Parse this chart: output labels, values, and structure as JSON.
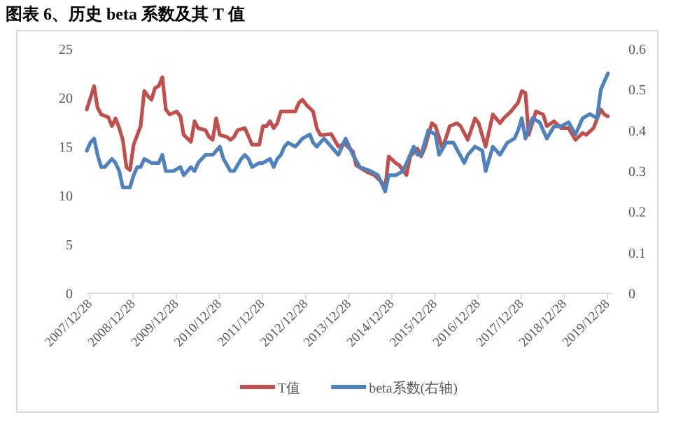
{
  "chart_data": {
    "type": "line",
    "title": "图表 6、历史 beta 系数及其 T 值",
    "xlim": [
      "2007-12",
      "2020-02"
    ],
    "xticks": [
      {
        "value": "2007-12-28",
        "label": "2007/12/28"
      },
      {
        "value": "2008-12-28",
        "label": "2008/12/28"
      },
      {
        "value": "2009-12-28",
        "label": "2009/12/28"
      },
      {
        "value": "2010-12-28",
        "label": "2010/12/28"
      },
      {
        "value": "2011-12-28",
        "label": "2011/12/28"
      },
      {
        "value": "2012-12-28",
        "label": "2012/12/28"
      },
      {
        "value": "2013-12-28",
        "label": "2013/12/28"
      },
      {
        "value": "2014-12-28",
        "label": "2014/12/28"
      },
      {
        "value": "2015-12-28",
        "label": "2015/12/28"
      },
      {
        "value": "2016-12-28",
        "label": "2016/12/28"
      },
      {
        "value": "2017-12-28",
        "label": "2017/12/28"
      },
      {
        "value": "2018-12-28",
        "label": "2018/12/28"
      },
      {
        "value": "2019-12-28",
        "label": "2019/12/28"
      }
    ],
    "ylim": [
      0,
      25
    ],
    "yticks": [
      0,
      5,
      10,
      15,
      20,
      25
    ],
    "y2lim": [
      0,
      0.6
    ],
    "y2ticks": [
      0,
      0.1,
      0.2,
      0.3,
      0.4,
      0.5,
      0.6
    ],
    "legend": "bottom",
    "series": [
      {
        "name": "T值",
        "color": "#c0504d",
        "x": [
          "2007-12",
          "2008-01",
          "2008-02",
          "2008-03",
          "2008-04",
          "2008-06",
          "2008-07",
          "2008-08",
          "2008-09",
          "2008-10",
          "2008-11",
          "2008-12",
          "2009-01",
          "2009-02",
          "2009-03",
          "2009-04",
          "2009-05",
          "2009-06",
          "2009-07",
          "2009-08",
          "2009-09",
          "2009-10",
          "2009-11",
          "2010-01",
          "2010-02",
          "2010-03",
          "2010-05",
          "2010-06",
          "2010-07",
          "2010-09",
          "2010-10",
          "2010-11",
          "2010-12",
          "2011-01",
          "2011-03",
          "2011-04",
          "2011-05",
          "2011-06",
          "2011-08",
          "2011-10",
          "2011-12",
          "2012-01",
          "2012-02",
          "2012-03",
          "2012-04",
          "2012-05",
          "2012-06",
          "2012-08",
          "2012-10",
          "2012-11",
          "2012-12",
          "2013-01",
          "2013-03",
          "2013-04",
          "2013-05",
          "2013-06",
          "2013-08",
          "2013-10",
          "2013-11",
          "2013-12",
          "2014-02",
          "2014-03",
          "2014-06",
          "2014-08",
          "2014-10",
          "2014-11",
          "2014-12",
          "2015-02",
          "2015-03",
          "2015-05",
          "2015-06",
          "2015-08",
          "2015-09",
          "2015-10",
          "2015-12",
          "2016-01",
          "2016-03",
          "2016-05",
          "2016-07",
          "2016-08",
          "2016-10",
          "2016-12",
          "2017-01",
          "2017-03",
          "2017-05",
          "2017-07",
          "2017-08",
          "2017-10",
          "2017-12",
          "2018-01",
          "2018-02",
          "2018-03",
          "2018-05",
          "2018-07",
          "2018-08",
          "2018-10",
          "2018-12",
          "2019-02",
          "2019-04",
          "2019-06",
          "2019-07",
          "2019-09",
          "2019-11",
          "2019-12",
          "2020-01"
        ],
        "values": [
          18.8,
          20,
          21.2,
          19,
          18.3,
          18,
          17.1,
          17.9,
          16.9,
          15.7,
          12.9,
          12.6,
          15.2,
          16.2,
          17.1,
          20.7,
          20.2,
          19.8,
          21,
          21.2,
          22.1,
          18.8,
          18.3,
          18.6,
          18.1,
          16.2,
          15.5,
          17.6,
          16.9,
          16.7,
          16,
          15.7,
          17.9,
          16.2,
          16,
          15.7,
          16,
          16.7,
          16.9,
          15.2,
          15.2,
          17.1,
          17.1,
          17.6,
          16.9,
          17.4,
          18.6,
          18.6,
          18.6,
          19.5,
          19.8,
          19.3,
          18.6,
          16.9,
          16.2,
          16.2,
          16.3,
          15,
          15.2,
          15.2,
          14.5,
          13.1,
          12.4,
          12.1,
          11.4,
          10.7,
          14,
          13.3,
          13.1,
          12.1,
          14,
          14.8,
          14,
          14.8,
          17.4,
          17.1,
          14.8,
          17.1,
          17.4,
          17.1,
          15.7,
          17.9,
          17.4,
          15,
          18.3,
          17.4,
          17.9,
          18.6,
          19.5,
          20.7,
          20.5,
          16.2,
          18.6,
          18.3,
          17.1,
          17.6,
          16.9,
          16.9,
          15.7,
          16.4,
          16.2,
          16.9,
          18.8,
          18.3,
          18.1
        ]
      },
      {
        "name": "beta系数(右轴)",
        "color": "#4f81bd",
        "axis": "y2",
        "x": [
          "2007-12",
          "2008-01",
          "2008-02",
          "2008-03",
          "2008-04",
          "2008-05",
          "2008-07",
          "2008-08",
          "2008-09",
          "2008-10",
          "2008-12",
          "2009-01",
          "2009-02",
          "2009-03",
          "2009-04",
          "2009-06",
          "2009-08",
          "2009-09",
          "2009-10",
          "2009-12",
          "2010-02",
          "2010-03",
          "2010-05",
          "2010-06",
          "2010-07",
          "2010-08",
          "2010-09",
          "2010-10",
          "2010-11",
          "2011-01",
          "2011-02",
          "2011-04",
          "2011-05",
          "2011-07",
          "2011-08",
          "2011-09",
          "2011-10",
          "2011-12",
          "2012-01",
          "2012-03",
          "2012-04",
          "2012-05",
          "2012-06",
          "2012-07",
          "2012-08",
          "2012-10",
          "2012-11",
          "2012-12",
          "2013-02",
          "2013-03",
          "2013-04",
          "2013-05",
          "2013-06",
          "2013-08",
          "2013-10",
          "2013-12",
          "2014-02",
          "2014-04",
          "2014-07",
          "2014-09",
          "2014-11",
          "2014-12",
          "2015-02",
          "2015-04",
          "2015-06",
          "2015-07",
          "2015-08",
          "2015-09",
          "2015-11",
          "2016-01",
          "2016-02",
          "2016-04",
          "2016-06",
          "2016-09",
          "2016-10",
          "2016-12",
          "2017-02",
          "2017-03",
          "2017-05",
          "2017-07",
          "2017-09",
          "2017-11",
          "2017-12",
          "2018-01",
          "2018-02",
          "2018-04",
          "2018-06",
          "2018-08",
          "2018-10",
          "2018-12",
          "2019-02",
          "2019-04",
          "2019-06",
          "2019-08",
          "2019-10",
          "2019-11",
          "2020-01"
        ],
        "values": [
          0.35,
          0.37,
          0.38,
          0.34,
          0.31,
          0.31,
          0.33,
          0.32,
          0.3,
          0.26,
          0.26,
          0.29,
          0.31,
          0.31,
          0.33,
          0.32,
          0.32,
          0.34,
          0.3,
          0.3,
          0.31,
          0.29,
          0.31,
          0.3,
          0.32,
          0.33,
          0.34,
          0.34,
          0.34,
          0.36,
          0.33,
          0.3,
          0.3,
          0.33,
          0.34,
          0.33,
          0.31,
          0.32,
          0.32,
          0.33,
          0.31,
          0.33,
          0.34,
          0.36,
          0.37,
          0.36,
          0.37,
          0.38,
          0.39,
          0.37,
          0.36,
          0.37,
          0.38,
          0.36,
          0.34,
          0.38,
          0.34,
          0.31,
          0.3,
          0.29,
          0.25,
          0.29,
          0.29,
          0.3,
          0.34,
          0.36,
          0.34,
          0.34,
          0.4,
          0.39,
          0.34,
          0.37,
          0.37,
          0.32,
          0.34,
          0.36,
          0.35,
          0.3,
          0.36,
          0.34,
          0.37,
          0.38,
          0.4,
          0.43,
          0.38,
          0.43,
          0.42,
          0.38,
          0.41,
          0.41,
          0.42,
          0.39,
          0.43,
          0.44,
          0.43,
          0.5,
          0.54
        ]
      }
    ]
  }
}
